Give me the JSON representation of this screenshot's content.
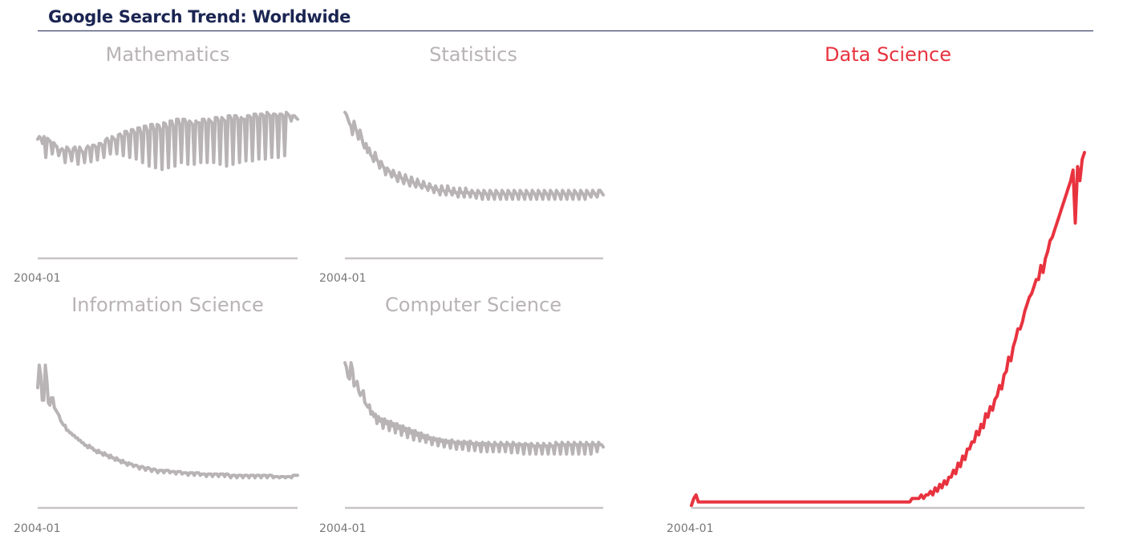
{
  "page": {
    "title": "Google Search Trend: Worldwide",
    "colors": {
      "title": "#1b2552",
      "muted": "#b8b3b5",
      "highlight": "#e8333f",
      "baseline": "#c8c4c6"
    }
  },
  "chart_data": [
    {
      "type": "line",
      "title": "Mathematics",
      "x_start": "2004-01",
      "x_end": "2020-06",
      "xtick_labels": [
        "2004-01"
      ],
      "ylim": [
        0,
        100
      ],
      "color": "#b8b3b5",
      "y": [
        69,
        72,
        70,
        64,
        72,
        48,
        70,
        68,
        66,
        52,
        65,
        62,
        60,
        50,
        56,
        58,
        56,
        42,
        60,
        58,
        54,
        44,
        58,
        60,
        55,
        40,
        60,
        56,
        54,
        42,
        58,
        61,
        59,
        43,
        62,
        62,
        60,
        45,
        64,
        64,
        62,
        48,
        68,
        70,
        66,
        52,
        72,
        70,
        68,
        52,
        74,
        75,
        72,
        50,
        78,
        78,
        74,
        48,
        80,
        80,
        76,
        46,
        82,
        82,
        76,
        42,
        84,
        84,
        78,
        38,
        86,
        86,
        80,
        36,
        86,
        85,
        80,
        34,
        88,
        87,
        82,
        36,
        90,
        90,
        84,
        38,
        92,
        92,
        86,
        42,
        92,
        92,
        88,
        40,
        90,
        88,
        86,
        40,
        90,
        88,
        88,
        42,
        92,
        92,
        88,
        42,
        92,
        90,
        88,
        42,
        94,
        94,
        90,
        40,
        94,
        92,
        90,
        38,
        96,
        96,
        92,
        40,
        96,
        96,
        92,
        42,
        94,
        92,
        92,
        44,
        96,
        96,
        94,
        44,
        98,
        98,
        94,
        46,
        98,
        98,
        96,
        46,
        100,
        98,
        96,
        48,
        98,
        98,
        96,
        48,
        98,
        98,
        96,
        50,
        100,
        98,
        96,
        90,
        96,
        96,
        94,
        92
      ]
    },
    {
      "type": "line",
      "title": "Statistics",
      "x_start": "2004-01",
      "x_end": "2020-06",
      "xtick_labels": [
        "2004-01"
      ],
      "ylim": [
        0,
        100
      ],
      "color": "#b8b3b5",
      "y": [
        100,
        98,
        94,
        90,
        88,
        80,
        92,
        86,
        82,
        76,
        84,
        78,
        72,
        68,
        72,
        64,
        68,
        62,
        60,
        56,
        64,
        58,
        56,
        50,
        56,
        52,
        50,
        44,
        50,
        48,
        46,
        42,
        48,
        44,
        42,
        38,
        46,
        42,
        40,
        36,
        44,
        40,
        38,
        34,
        42,
        38,
        36,
        33,
        40,
        36,
        34,
        32,
        38,
        34,
        33,
        30,
        36,
        33,
        32,
        28,
        34,
        31,
        30,
        26,
        34,
        30,
        29,
        26,
        34,
        30,
        29,
        26,
        32,
        28,
        28,
        24,
        32,
        28,
        28,
        24,
        32,
        28,
        28,
        24,
        30,
        28,
        27,
        23,
        30,
        28,
        27,
        22,
        30,
        28,
        26,
        22,
        30,
        28,
        26,
        22,
        30,
        28,
        26,
        22,
        30,
        28,
        26,
        22,
        30,
        28,
        26,
        22,
        30,
        28,
        26,
        22,
        30,
        28,
        26,
        22,
        30,
        28,
        26,
        22,
        30,
        28,
        26,
        22,
        30,
        28,
        26,
        22,
        30,
        28,
        26,
        22,
        30,
        28,
        26,
        22,
        30,
        28,
        26,
        22,
        30,
        28,
        26,
        22,
        30,
        28,
        26,
        22,
        30,
        28,
        26,
        22,
        30,
        28,
        26,
        22,
        30,
        28,
        26,
        24,
        30,
        28,
        26,
        24,
        30,
        30,
        28,
        26
      ]
    },
    {
      "type": "line",
      "title": "Information Science",
      "x_start": "2004-01",
      "x_end": "2020-06",
      "xtick_labels": [
        "2004-01"
      ],
      "ylim": [
        0,
        100
      ],
      "color": "#b8b3b5",
      "y": [
        80,
        98,
        90,
        70,
        70,
        98,
        86,
        68,
        66,
        72,
        72,
        64,
        62,
        60,
        58,
        54,
        52,
        50,
        50,
        46,
        46,
        44,
        44,
        42,
        42,
        40,
        40,
        38,
        38,
        36,
        36,
        34,
        34,
        32,
        34,
        32,
        32,
        30,
        30,
        28,
        30,
        28,
        28,
        26,
        28,
        26,
        26,
        24,
        26,
        24,
        24,
        22,
        24,
        22,
        22,
        20,
        22,
        20,
        20,
        18,
        20,
        19,
        19,
        17,
        18,
        18,
        17,
        15,
        17,
        17,
        16,
        14,
        16,
        16,
        15,
        13,
        15,
        15,
        14,
        12,
        14,
        14,
        14,
        12,
        14,
        14,
        14,
        12,
        13,
        13,
        13,
        11,
        13,
        13,
        13,
        11,
        12,
        12,
        12,
        10,
        12,
        12,
        12,
        10,
        12,
        12,
        12,
        10,
        11,
        11,
        11,
        9,
        11,
        11,
        11,
        9,
        11,
        11,
        11,
        9,
        11,
        11,
        11,
        9,
        11,
        11,
        10,
        8,
        10,
        10,
        10,
        8,
        10,
        10,
        10,
        8,
        10,
        10,
        10,
        8,
        10,
        10,
        10,
        8,
        10,
        10,
        10,
        8,
        10,
        10,
        10,
        8,
        10,
        10,
        10,
        8,
        9,
        9,
        9,
        8,
        9,
        9,
        9,
        8,
        9,
        9,
        9,
        8,
        10,
        10,
        10,
        10
      ]
    },
    {
      "type": "line",
      "title": "Computer Science",
      "x_start": "2004-01",
      "x_end": "2020-06",
      "xtick_labels": [
        "2004-01"
      ],
      "ylim": [
        0,
        100
      ],
      "color": "#b8b3b5",
      "y": [
        100,
        96,
        88,
        86,
        100,
        94,
        80,
        82,
        84,
        76,
        72,
        74,
        76,
        66,
        64,
        62,
        64,
        56,
        58,
        54,
        56,
        48,
        54,
        50,
        52,
        44,
        52,
        48,
        50,
        42,
        50,
        46,
        48,
        40,
        48,
        44,
        46,
        38,
        46,
        42,
        44,
        36,
        44,
        40,
        42,
        34,
        42,
        38,
        40,
        33,
        40,
        36,
        38,
        32,
        38,
        35,
        36,
        30,
        36,
        34,
        35,
        29,
        35,
        33,
        34,
        28,
        34,
        32,
        33,
        27,
        34,
        32,
        32,
        26,
        33,
        31,
        32,
        26,
        33,
        31,
        32,
        25,
        33,
        31,
        31,
        25,
        32,
        30,
        31,
        24,
        32,
        30,
        31,
        24,
        32,
        30,
        30,
        24,
        32,
        30,
        30,
        24,
        32,
        30,
        30,
        24,
        32,
        30,
        30,
        23,
        32,
        30,
        30,
        23,
        31,
        30,
        30,
        22,
        31,
        30,
        30,
        22,
        31,
        29,
        29,
        22,
        31,
        29,
        29,
        22,
        31,
        29,
        29,
        22,
        31,
        29,
        29,
        22,
        32,
        30,
        30,
        22,
        32,
        30,
        30,
        22,
        32,
        30,
        30,
        22,
        32,
        30,
        30,
        22,
        32,
        30,
        30,
        22,
        32,
        30,
        30,
        22,
        32,
        30,
        30,
        24,
        32,
        30,
        30,
        28
      ]
    },
    {
      "type": "line",
      "title": "Data Science",
      "x_start": "2004-01",
      "x_end": "2020-06",
      "xtick_labels": [
        "2004-01"
      ],
      "ylim": [
        0,
        100
      ],
      "color": "#e8333f",
      "y": [
        0,
        2,
        3,
        1,
        1,
        1,
        1,
        1,
        1,
        1,
        1,
        1,
        1,
        1,
        1,
        1,
        1,
        1,
        1,
        1,
        1,
        1,
        1,
        1,
        1,
        1,
        1,
        1,
        1,
        1,
        1,
        1,
        1,
        1,
        1,
        1,
        1,
        1,
        1,
        1,
        1,
        1,
        1,
        1,
        1,
        1,
        1,
        1,
        1,
        1,
        1,
        1,
        1,
        1,
        1,
        1,
        1,
        1,
        1,
        1,
        1,
        1,
        1,
        1,
        1,
        1,
        1,
        1,
        1,
        1,
        1,
        1,
        1,
        1,
        1,
        1,
        1,
        1,
        1,
        1,
        1,
        1,
        1,
        1,
        1,
        1,
        1,
        1,
        1,
        1,
        1,
        1,
        1,
        1,
        1,
        1,
        2,
        2,
        2,
        2,
        3,
        2,
        3,
        3,
        4,
        3,
        5,
        4,
        6,
        5,
        7,
        6,
        8,
        8,
        10,
        9,
        12,
        11,
        14,
        13,
        16,
        16,
        18,
        18,
        21,
        20,
        23,
        22,
        26,
        25,
        28,
        27,
        30,
        31,
        34,
        33,
        37,
        38,
        42,
        41,
        45,
        47,
        50,
        50,
        52,
        55,
        57,
        59,
        60,
        62,
        64,
        64,
        68,
        66,
        70,
        72,
        75,
        76,
        78,
        80,
        82,
        84,
        86,
        88,
        90,
        92,
        95,
        80,
        96,
        92,
        98,
        100
      ]
    }
  ]
}
